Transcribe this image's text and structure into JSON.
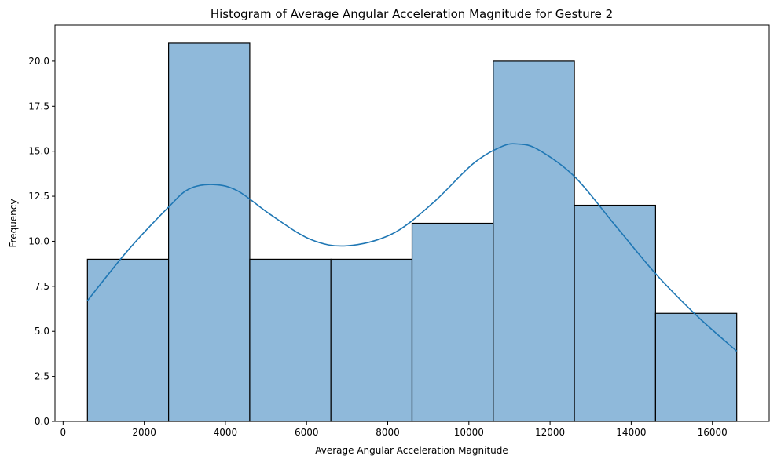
{
  "chart_data": {
    "type": "bar",
    "title": "Histogram of Average Angular Acceleration Magnitude for Gesture 2",
    "xlabel": "Average Angular Acceleration Magnitude",
    "ylabel": "Frequency",
    "xlim": [
      -200,
      17400
    ],
    "ylim": [
      0,
      22
    ],
    "xticks": [
      0,
      2000,
      4000,
      6000,
      8000,
      10000,
      12000,
      14000,
      16000
    ],
    "xtick_labels": [
      "0",
      "2000",
      "4000",
      "6000",
      "8000",
      "10000",
      "12000",
      "14000",
      "16000"
    ],
    "yticks": [
      0,
      2.5,
      5,
      7.5,
      10,
      12.5,
      15,
      17.5,
      20
    ],
    "ytick_labels": [
      "0.0",
      "2.5",
      "5.0",
      "7.5",
      "10.0",
      "12.5",
      "15.0",
      "17.5",
      "20.0"
    ],
    "bins": [
      {
        "x0": 600,
        "x1": 2600,
        "count": 9
      },
      {
        "x0": 2600,
        "x1": 4600,
        "count": 21
      },
      {
        "x0": 4600,
        "x1": 6600,
        "count": 9
      },
      {
        "x0": 6600,
        "x1": 8600,
        "count": 9
      },
      {
        "x0": 8600,
        "x1": 10600,
        "count": 11
      },
      {
        "x0": 10600,
        "x1": 12600,
        "count": 20
      },
      {
        "x0": 12600,
        "x1": 14600,
        "count": 12
      },
      {
        "x0": 14600,
        "x1": 16600,
        "count": 6
      }
    ],
    "kde": {
      "x": [
        600,
        1600,
        2600,
        3100,
        3700,
        4300,
        5100,
        6100,
        7000,
        8100,
        9100,
        10100,
        10800,
        11200,
        11700,
        12600,
        13600,
        14600,
        15600,
        16600
      ],
      "y": [
        6.7,
        9.5,
        11.9,
        12.9,
        13.15,
        12.8,
        11.5,
        10.1,
        9.75,
        10.4,
        12.1,
        14.3,
        15.25,
        15.4,
        15.1,
        13.6,
        10.9,
        8.2,
        5.9,
        3.9
      ]
    },
    "bar_color": "#8fb9da",
    "bar_edge_color": "#000000",
    "kde_color": "#1f77b4",
    "grid": false
  }
}
